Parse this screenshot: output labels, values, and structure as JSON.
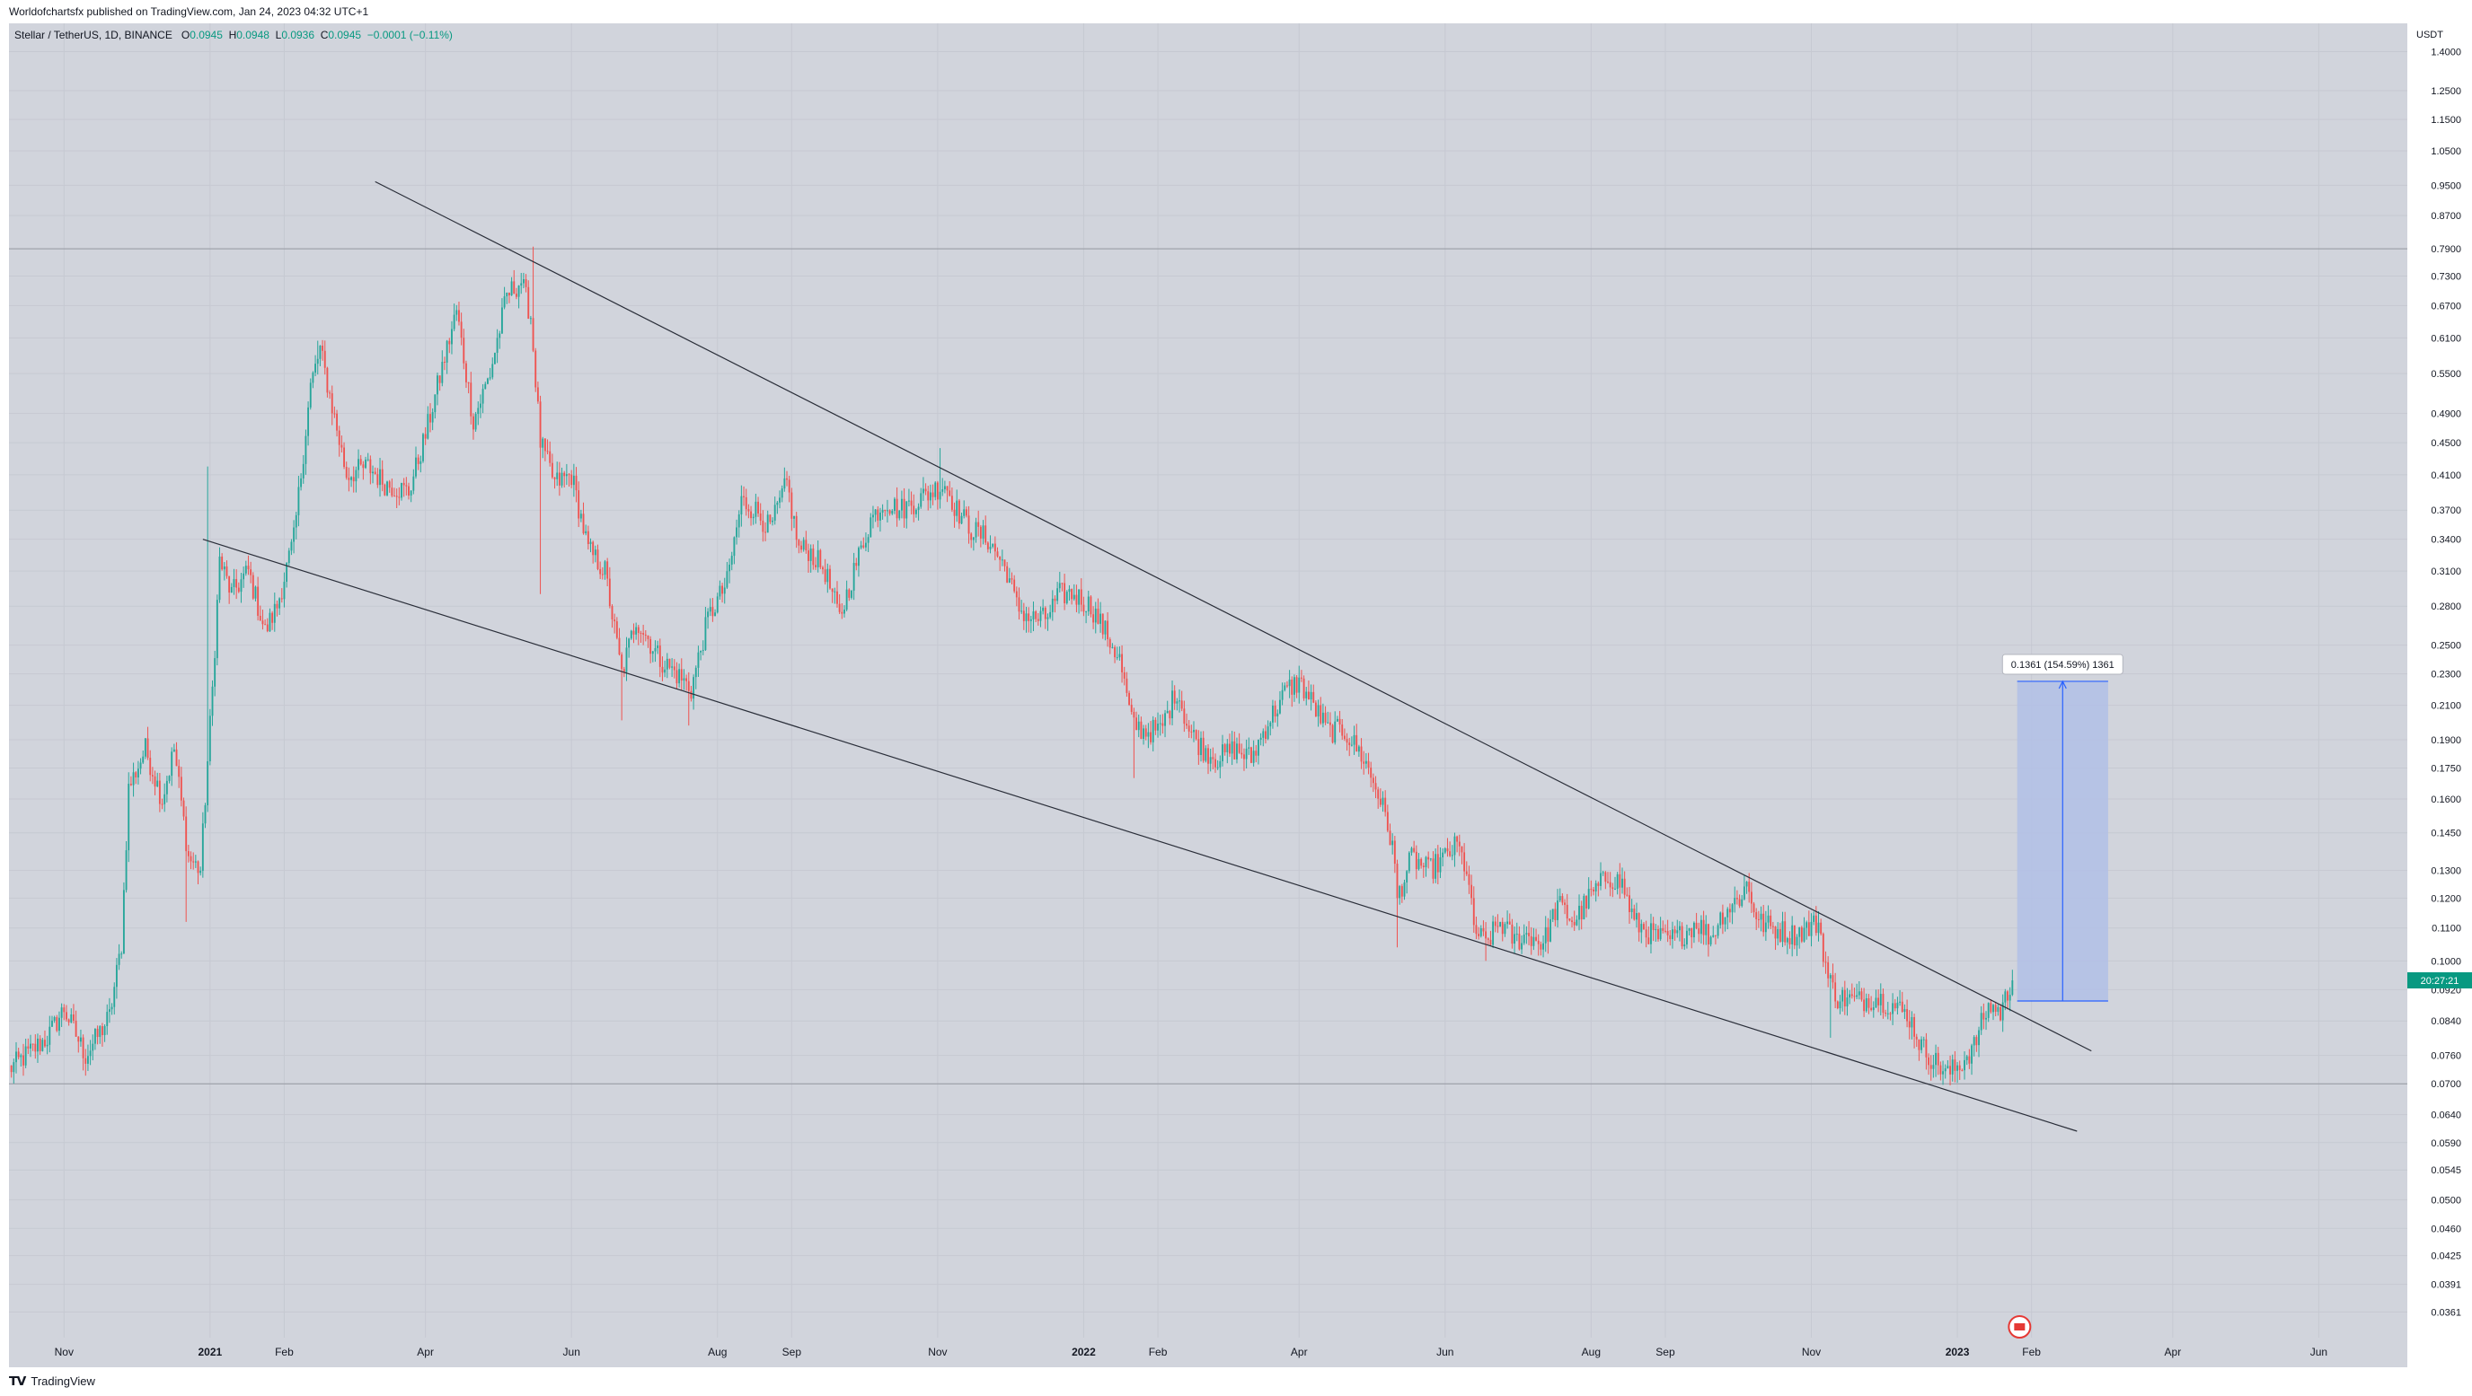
{
  "header": {
    "published": "Worldofchartsfx published on TradingView.com, Jan 24, 2023 04:32 UTC+1"
  },
  "legend": {
    "symbol": "Stellar / TetherUS, 1D, BINANCE",
    "o_label": "O",
    "o_value": "0.0945",
    "h_label": "H",
    "h_value": "0.0948",
    "l_label": "L",
    "l_value": "0.0936",
    "c_label": "C",
    "c_value": "0.0945",
    "change": "−0.0001 (−0.11%)"
  },
  "footer": {
    "logo_text": "TradingView"
  },
  "measure": {
    "label": "0.1361 (154.59%) 1361"
  },
  "colors": {
    "background": "#d1d4dc",
    "up": "#26a69a",
    "down": "#ef5350",
    "trendline": "#2a2e39",
    "measure_fill": "#b2c0e6",
    "measure_line": "#2962ff",
    "last_price_badge": "#089981"
  },
  "chart_data": {
    "type": "candlestick",
    "symbol": "Stellar / TetherUS",
    "interval": "1D",
    "exchange": "BINANCE",
    "currency": "USDT",
    "scale": "log",
    "ylim": [
      0.0335,
      1.52
    ],
    "x_range": [
      "2020-10-09",
      "2023-07-08"
    ],
    "last_price": "0.0945",
    "countdown": "20:27:21",
    "y_ticks": [
      "1.4000",
      "1.2500",
      "1.1500",
      "1.0500",
      "0.9500",
      "0.8700",
      "0.7900",
      "0.7300",
      "0.6700",
      "0.6100",
      "0.5500",
      "0.4900",
      "0.4500",
      "0.4100",
      "0.3700",
      "0.3400",
      "0.3100",
      "0.2800",
      "0.2500",
      "0.2300",
      "0.2100",
      "0.1900",
      "0.1750",
      "0.1600",
      "0.1450",
      "0.1300",
      "0.1200",
      "0.1100",
      "0.1000",
      "0.0920",
      "0.0840",
      "0.0760",
      "0.0700",
      "0.0640",
      "0.0590",
      "0.0545",
      "0.0500",
      "0.0460",
      "0.0425",
      "0.0391",
      "0.0361"
    ],
    "y_tick_values": [
      1.4,
      1.25,
      1.15,
      1.05,
      0.95,
      0.87,
      0.79,
      0.73,
      0.67,
      0.61,
      0.55,
      0.49,
      0.45,
      0.41,
      0.37,
      0.34,
      0.31,
      0.28,
      0.25,
      0.23,
      0.21,
      0.19,
      0.175,
      0.16,
      0.145,
      0.13,
      0.12,
      0.11,
      0.1,
      0.092,
      0.084,
      0.076,
      0.07,
      0.064,
      0.059,
      0.0545,
      0.05,
      0.046,
      0.0425,
      0.0391,
      0.0361
    ],
    "x_ticks": [
      {
        "label": "Nov",
        "date": "2020-11-01"
      },
      {
        "label": "2021",
        "date": "2021-01-01"
      },
      {
        "label": "Feb",
        "date": "2021-02-01"
      },
      {
        "label": "Apr",
        "date": "2021-04-01"
      },
      {
        "label": "Jun",
        "date": "2021-06-01"
      },
      {
        "label": "Aug",
        "date": "2021-08-01"
      },
      {
        "label": "Sep",
        "date": "2021-09-01"
      },
      {
        "label": "Nov",
        "date": "2021-11-01"
      },
      {
        "label": "2022",
        "date": "2022-01-01"
      },
      {
        "label": "Feb",
        "date": "2022-02-01"
      },
      {
        "label": "Apr",
        "date": "2022-04-01"
      },
      {
        "label": "Jun",
        "date": "2022-06-01"
      },
      {
        "label": "Aug",
        "date": "2022-08-01"
      },
      {
        "label": "Sep",
        "date": "2022-09-01"
      },
      {
        "label": "Nov",
        "date": "2022-11-01"
      },
      {
        "label": "2023",
        "date": "2023-01-01"
      },
      {
        "label": "Feb",
        "date": "2023-02-01"
      },
      {
        "label": "Apr",
        "date": "2023-04-01"
      },
      {
        "label": "Jun",
        "date": "2023-06-01"
      }
    ],
    "horizontal_lines": [
      0.79,
      0.07
    ],
    "trendlines": [
      {
        "name": "upper",
        "from": {
          "date": "2021-03-11",
          "price": 0.96
        },
        "to": {
          "date": "2023-02-26",
          "price": 0.077
        }
      },
      {
        "name": "lower",
        "from": {
          "date": "2020-12-29",
          "price": 0.34
        },
        "to": {
          "date": "2023-02-20",
          "price": 0.061
        }
      }
    ],
    "price_range_tool": {
      "from_date": "2023-01-26",
      "to_date": "2023-03-05",
      "low": 0.089,
      "high": 0.2251
    },
    "close_path": [
      [
        "2020-10-09",
        0.073
      ],
      [
        "2020-10-25",
        0.08
      ],
      [
        "2020-11-01",
        0.087
      ],
      [
        "2020-11-10",
        0.076
      ],
      [
        "2020-11-20",
        0.085
      ],
      [
        "2020-11-25",
        0.105
      ],
      [
        "2020-11-28",
        0.165
      ],
      [
        "2020-12-05",
        0.185
      ],
      [
        "2020-12-12",
        0.16
      ],
      [
        "2020-12-17",
        0.185
      ],
      [
        "2020-12-23",
        0.135
      ],
      [
        "2020-12-28",
        0.13
      ],
      [
        "2021-01-02",
        0.22
      ],
      [
        "2021-01-05",
        0.32
      ],
      [
        "2021-01-10",
        0.29
      ],
      [
        "2021-01-17",
        0.31
      ],
      [
        "2021-01-24",
        0.26
      ],
      [
        "2021-01-29",
        0.28
      ],
      [
        "2021-02-05",
        0.34
      ],
      [
        "2021-02-12",
        0.53
      ],
      [
        "2021-02-16",
        0.59
      ],
      [
        "2021-02-21",
        0.5
      ],
      [
        "2021-02-27",
        0.41
      ],
      [
        "2021-03-08",
        0.42
      ],
      [
        "2021-03-15",
        0.4
      ],
      [
        "2021-03-25",
        0.39
      ],
      [
        "2021-04-01",
        0.46
      ],
      [
        "2021-04-08",
        0.56
      ],
      [
        "2021-04-14",
        0.66
      ],
      [
        "2021-04-21",
        0.48
      ],
      [
        "2021-04-28",
        0.55
      ],
      [
        "2021-05-05",
        0.69
      ],
      [
        "2021-05-11",
        0.72
      ],
      [
        "2021-05-15",
        0.65
      ],
      [
        "2021-05-19",
        0.45
      ],
      [
        "2021-05-25",
        0.4
      ],
      [
        "2021-06-01",
        0.41
      ],
      [
        "2021-06-08",
        0.33
      ],
      [
        "2021-06-15",
        0.31
      ],
      [
        "2021-06-22",
        0.23
      ],
      [
        "2021-06-28",
        0.27
      ],
      [
        "2021-07-08",
        0.24
      ],
      [
        "2021-07-15",
        0.23
      ],
      [
        "2021-07-21",
        0.22
      ],
      [
        "2021-07-28",
        0.27
      ],
      [
        "2021-08-05",
        0.3
      ],
      [
        "2021-08-11",
        0.38
      ],
      [
        "2021-08-17",
        0.37
      ],
      [
        "2021-08-23",
        0.35
      ],
      [
        "2021-08-30",
        0.4
      ],
      [
        "2021-09-04",
        0.33
      ],
      [
        "2021-09-08",
        0.33
      ],
      [
        "2021-09-15",
        0.31
      ],
      [
        "2021-09-21",
        0.27
      ],
      [
        "2021-09-27",
        0.31
      ],
      [
        "2021-10-04",
        0.36
      ],
      [
        "2021-10-10",
        0.38
      ],
      [
        "2021-10-16",
        0.37
      ],
      [
        "2021-10-23",
        0.38
      ],
      [
        "2021-10-29",
        0.39
      ],
      [
        "2021-11-04",
        0.4
      ],
      [
        "2021-11-09",
        0.37
      ],
      [
        "2021-11-15",
        0.35
      ],
      [
        "2021-11-22",
        0.34
      ],
      [
        "2021-11-30",
        0.31
      ],
      [
        "2021-12-04",
        0.28
      ],
      [
        "2021-12-10",
        0.27
      ],
      [
        "2021-12-16",
        0.27
      ],
      [
        "2021-12-22",
        0.29
      ],
      [
        "2021-12-28",
        0.29
      ],
      [
        "2022-01-04",
        0.28
      ],
      [
        "2022-01-10",
        0.26
      ],
      [
        "2022-01-16",
        0.24
      ],
      [
        "2022-01-21",
        0.2
      ],
      [
        "2022-01-26",
        0.195
      ],
      [
        "2022-02-02",
        0.195
      ],
      [
        "2022-02-09",
        0.22
      ],
      [
        "2022-02-14",
        0.195
      ],
      [
        "2022-02-20",
        0.185
      ],
      [
        "2022-02-26",
        0.18
      ],
      [
        "2022-03-05",
        0.185
      ],
      [
        "2022-03-12",
        0.18
      ],
      [
        "2022-03-19",
        0.2
      ],
      [
        "2022-03-27",
        0.22
      ],
      [
        "2022-04-01",
        0.225
      ],
      [
        "2022-04-07",
        0.21
      ],
      [
        "2022-04-13",
        0.195
      ],
      [
        "2022-04-20",
        0.195
      ],
      [
        "2022-04-28",
        0.18
      ],
      [
        "2022-05-05",
        0.16
      ],
      [
        "2022-05-10",
        0.14
      ],
      [
        "2022-05-12",
        0.12
      ],
      [
        "2022-05-18",
        0.135
      ],
      [
        "2022-05-25",
        0.13
      ],
      [
        "2022-06-01",
        0.135
      ],
      [
        "2022-06-06",
        0.14
      ],
      [
        "2022-06-10",
        0.13
      ],
      [
        "2022-06-13",
        0.11
      ],
      [
        "2022-06-18",
        0.105
      ],
      [
        "2022-06-24",
        0.112
      ],
      [
        "2022-06-30",
        0.106
      ],
      [
        "2022-07-06",
        0.108
      ],
      [
        "2022-07-12",
        0.105
      ],
      [
        "2022-07-18",
        0.118
      ],
      [
        "2022-07-25",
        0.112
      ],
      [
        "2022-07-31",
        0.12
      ],
      [
        "2022-08-08",
        0.128
      ],
      [
        "2022-08-14",
        0.125
      ],
      [
        "2022-08-19",
        0.112
      ],
      [
        "2022-08-26",
        0.108
      ],
      [
        "2022-09-02",
        0.106
      ],
      [
        "2022-09-08",
        0.108
      ],
      [
        "2022-09-14",
        0.112
      ],
      [
        "2022-09-20",
        0.107
      ],
      [
        "2022-09-25",
        0.115
      ],
      [
        "2022-10-02",
        0.12
      ],
      [
        "2022-10-05",
        0.125
      ],
      [
        "2022-10-10",
        0.112
      ],
      [
        "2022-10-16",
        0.11
      ],
      [
        "2022-10-24",
        0.108
      ],
      [
        "2022-10-31",
        0.11
      ],
      [
        "2022-11-04",
        0.112
      ],
      [
        "2022-11-08",
        0.095
      ],
      [
        "2022-11-12",
        0.09
      ],
      [
        "2022-11-20",
        0.089
      ],
      [
        "2022-11-28",
        0.09
      ],
      [
        "2022-12-05",
        0.088
      ],
      [
        "2022-12-12",
        0.085
      ],
      [
        "2022-12-17",
        0.078
      ],
      [
        "2022-12-22",
        0.075
      ],
      [
        "2022-12-28",
        0.072
      ],
      [
        "2023-01-02",
        0.074
      ],
      [
        "2023-01-08",
        0.078
      ],
      [
        "2023-01-12",
        0.085
      ],
      [
        "2023-01-15",
        0.088
      ],
      [
        "2023-01-19",
        0.086
      ],
      [
        "2023-01-24",
        0.0945
      ]
    ],
    "wick_extremes": [
      {
        "date": "2020-12-22",
        "low": 0.112
      },
      {
        "date": "2020-12-31",
        "high": 0.42
      },
      {
        "date": "2021-02-15",
        "high": 0.605
      },
      {
        "date": "2021-05-16",
        "high": 0.795
      },
      {
        "date": "2021-05-19",
        "low": 0.29
      },
      {
        "date": "2021-06-22",
        "low": 0.201
      },
      {
        "date": "2021-07-20",
        "low": 0.198
      },
      {
        "date": "2021-11-02",
        "high": 0.443
      },
      {
        "date": "2022-01-22",
        "low": 0.17
      },
      {
        "date": "2022-05-12",
        "low": 0.104
      },
      {
        "date": "2022-06-18",
        "low": 0.1
      },
      {
        "date": "2022-11-09",
        "low": 0.08
      },
      {
        "date": "2022-12-30",
        "low": 0.071
      }
    ]
  }
}
